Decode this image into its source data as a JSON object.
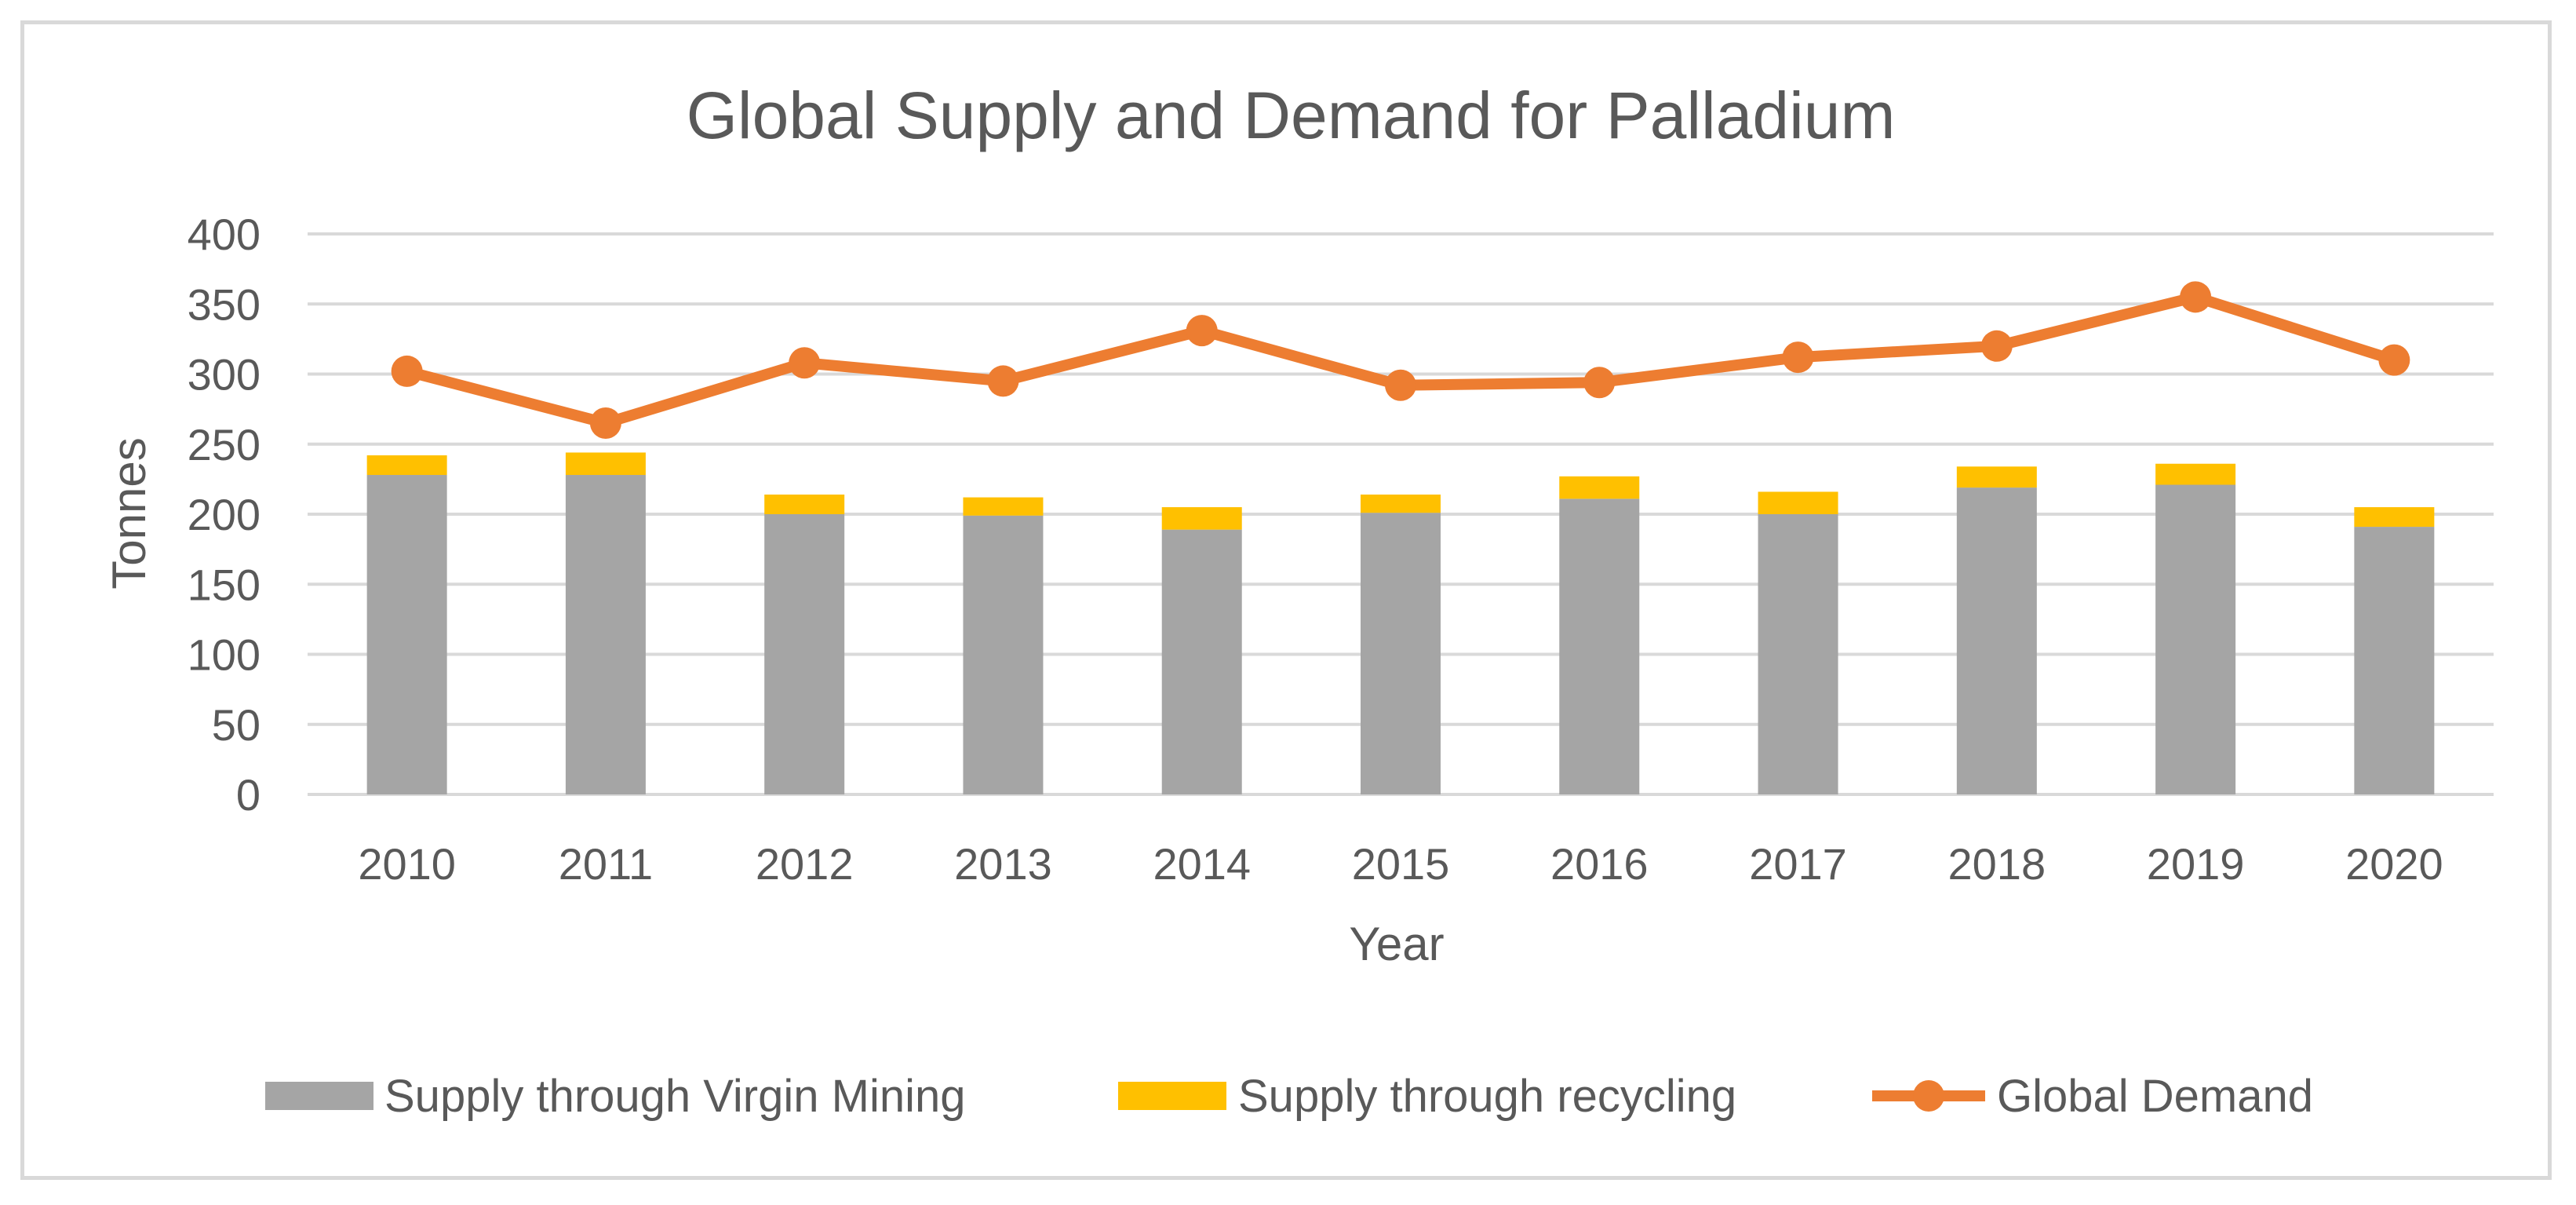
{
  "chart_data": {
    "type": "bar",
    "title": "Global Supply and Demand for Palladium",
    "xlabel": "Year",
    "ylabel": "Tonnes",
    "ylim": [
      0,
      400
    ],
    "yticks": [
      "0",
      "50",
      "100",
      "150",
      "200",
      "250",
      "300",
      "350",
      "400"
    ],
    "grid": true,
    "legend_position": "bottom",
    "categories": [
      "2010",
      "2011",
      "2012",
      "2013",
      "2014",
      "2015",
      "2016",
      "2017",
      "2018",
      "2019",
      "2020"
    ],
    "series": [
      {
        "name": "Supply through Virgin Mining",
        "kind": "stacked-bar",
        "color": "#a5a5a5",
        "values": [
          228,
          228,
          200,
          199,
          189,
          201,
          211,
          200,
          219,
          221,
          191
        ]
      },
      {
        "name": "Supply through recycling",
        "kind": "stacked-bar",
        "color": "#ffc000",
        "values": [
          14,
          16,
          14,
          13,
          16,
          13,
          16,
          16,
          15,
          15,
          14
        ]
      },
      {
        "name": "Global Demand",
        "kind": "line",
        "color": "#ed7d31",
        "values": [
          302,
          265,
          308,
          295,
          331,
          292,
          294,
          312,
          320,
          355,
          310
        ]
      }
    ]
  },
  "colors": {
    "grid": "#d9d9d9",
    "text": "#595959",
    "frame": "#d9d9d9"
  }
}
